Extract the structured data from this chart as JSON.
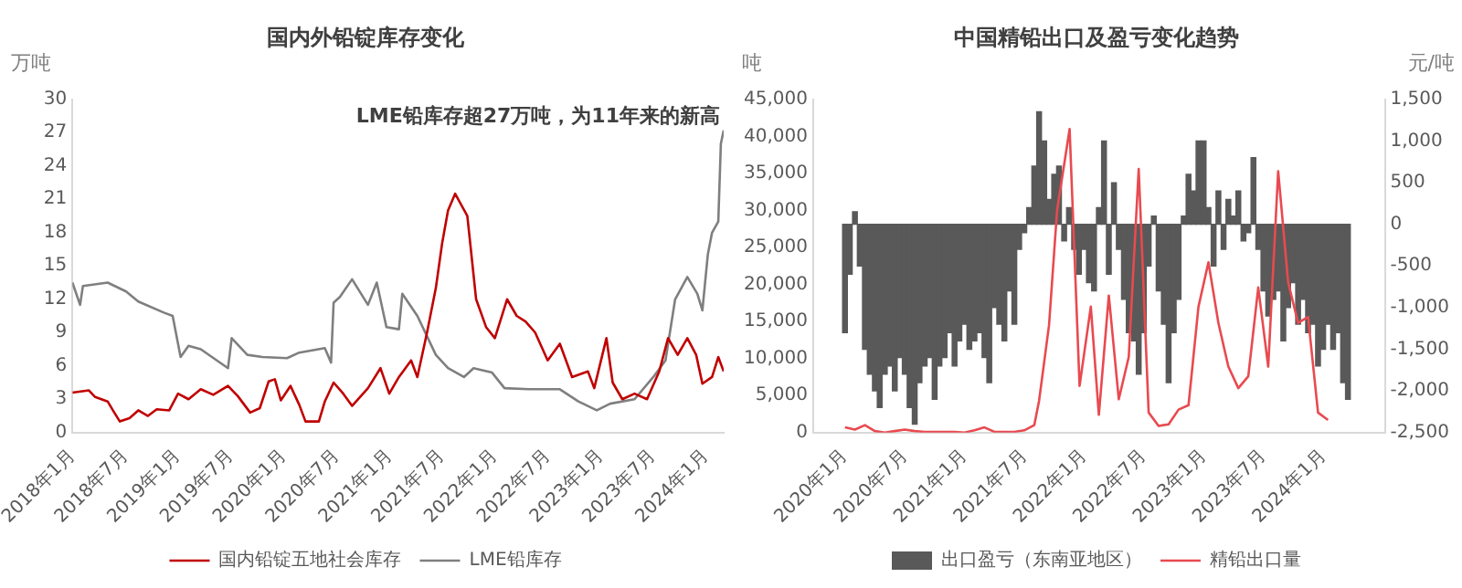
{
  "chart_data": [
    {
      "type": "line",
      "title": "国内外铅锭库存变化",
      "ylabel": "万吨",
      "annotations": [
        "LME铅库存超27万吨，为11年来的新高"
      ],
      "xlim": [
        "2018-01",
        "2024-03"
      ],
      "xticks": [
        {
          "value": "2018-01",
          "label": "2018年1月"
        },
        {
          "value": "2018-07",
          "label": "2018年7月"
        },
        {
          "value": "2019-01",
          "label": "2019年1月"
        },
        {
          "value": "2019-07",
          "label": "2019年7月"
        },
        {
          "value": "2020-01",
          "label": "2020年1月"
        },
        {
          "value": "2020-07",
          "label": "2020年7月"
        },
        {
          "value": "2021-01",
          "label": "2021年1月"
        },
        {
          "value": "2021-07",
          "label": "2021年7月"
        },
        {
          "value": "2022-01",
          "label": "2022年1月"
        },
        {
          "value": "2022-07",
          "label": "2022年7月"
        },
        {
          "value": "2023-01",
          "label": "2023年1月"
        },
        {
          "value": "2023-07",
          "label": "2023年7月"
        },
        {
          "value": "2024-01",
          "label": "2024年1月"
        }
      ],
      "ylim": [
        0,
        30
      ],
      "yticks": [
        0,
        3,
        6,
        9,
        12,
        15,
        18,
        21,
        24,
        27,
        30
      ],
      "legend": "bottom",
      "marker": "none",
      "series": [
        {
          "name": "国内铅锭五地社会库存",
          "color": "#c00000",
          "x": [
            "2018-01-01",
            "2018-02-28",
            "2018-03-19",
            "2018-05-01",
            "2018-05-22",
            "2018-06-13",
            "2018-07-16",
            "2018-08-16",
            "2018-09-19",
            "2018-10-19",
            "2018-12-01",
            "2019-01-01",
            "2019-02-07",
            "2019-03-19",
            "2019-05-01",
            "2019-06-22",
            "2019-07-25",
            "2019-09-07",
            "2019-10-10",
            "2019-11-10",
            "2019-12-01",
            "2019-12-22",
            "2020-01-25",
            "2020-02-25",
            "2020-03-16",
            "2020-05-01",
            "2020-05-22",
            "2020-06-22",
            "2020-07-25",
            "2020-08-25",
            "2020-10-19",
            "2020-12-01",
            "2021-01-01",
            "2021-02-04",
            "2021-03-16",
            "2021-04-07",
            "2021-05-10",
            "2021-06-10",
            "2021-07-01",
            "2021-07-22",
            "2021-08-16",
            "2021-09-28",
            "2021-10-28",
            "2021-12-01",
            "2022-01-01",
            "2022-02-13",
            "2022-03-16",
            "2022-04-16",
            "2022-05-19",
            "2022-07-01",
            "2022-08-13",
            "2022-09-25",
            "2022-11-19",
            "2022-12-10",
            "2023-01-22",
            "2023-02-13",
            "2023-03-16",
            "2023-04-28",
            "2023-06-10",
            "2023-07-22",
            "2023-08-22",
            "2023-09-25",
            "2023-10-28",
            "2023-11-28",
            "2023-12-19",
            "2024-01-22",
            "2024-02-13",
            "2024-03-01"
          ],
          "values": [
            3.6,
            3.8,
            3.2,
            2.8,
            1.9,
            1.0,
            1.3,
            2.0,
            1.5,
            2.1,
            2.0,
            3.5,
            3.0,
            3.9,
            3.4,
            4.2,
            3.3,
            1.8,
            2.2,
            4.6,
            4.8,
            2.9,
            4.2,
            2.5,
            1.0,
            1.0,
            2.8,
            4.5,
            3.5,
            2.4,
            4.0,
            5.8,
            3.5,
            5.0,
            6.5,
            5.0,
            9.0,
            13.0,
            17.0,
            20.0,
            21.5,
            19.5,
            12.0,
            9.5,
            8.5,
            12.0,
            10.5,
            10.0,
            9.0,
            6.5,
            8.0,
            5.0,
            5.5,
            4.0,
            8.5,
            4.5,
            3.0,
            3.5,
            3.0,
            5.5,
            8.5,
            7.0,
            8.5,
            7.0,
            4.4,
            5.0,
            6.8,
            5.5
          ]
        },
        {
          "name": "LME铅库存",
          "color": "#7f7f7f",
          "x": [
            "2018-01-01",
            "2018-01-28",
            "2018-02-07",
            "2018-05-01",
            "2018-07-04",
            "2018-08-16",
            "2018-11-13",
            "2018-12-13",
            "2019-01-10",
            "2019-02-07",
            "2019-03-19",
            "2019-06-22",
            "2019-07-04",
            "2019-08-28",
            "2019-10-19",
            "2020-01-13",
            "2020-02-25",
            "2020-05-22",
            "2020-06-13",
            "2020-06-22",
            "2020-07-13",
            "2020-08-25",
            "2020-10-19",
            "2020-11-19",
            "2020-12-22",
            "2021-02-04",
            "2021-02-16",
            "2021-04-07",
            "2021-06-10",
            "2021-07-22",
            "2021-09-16",
            "2021-10-19",
            "2021-12-22",
            "2022-02-04",
            "2022-04-28",
            "2022-08-13",
            "2022-10-16",
            "2022-12-19",
            "2023-02-04",
            "2023-04-28",
            "2023-07-01",
            "2023-08-13",
            "2023-09-16",
            "2023-10-28",
            "2023-12-01",
            "2023-12-19",
            "2024-01-07",
            "2024-01-22",
            "2024-02-13",
            "2024-02-22",
            "2024-03-01"
          ],
          "values": [
            13.5,
            11.5,
            13.2,
            13.5,
            12.7,
            11.8,
            10.8,
            10.5,
            6.8,
            7.8,
            7.5,
            5.8,
            8.5,
            7.0,
            6.8,
            6.7,
            7.2,
            7.6,
            6.3,
            11.7,
            12.2,
            13.8,
            11.5,
            13.5,
            9.5,
            9.3,
            12.5,
            10.5,
            7.0,
            5.8,
            5.0,
            5.8,
            5.4,
            4.0,
            3.9,
            3.9,
            2.8,
            2.0,
            2.6,
            3.0,
            5.0,
            6.5,
            12.0,
            14.0,
            12.5,
            11.0,
            16.0,
            18.0,
            19.0,
            26.0,
            27.2
          ]
        }
      ]
    },
    {
      "type": "bar",
      "title": "中国精铅出口及盈亏变化趋势",
      "ylabel": "吨",
      "y2label": "元/吨",
      "xlim": [
        "2020-01",
        "2024-04"
      ],
      "xticks": [
        {
          "value": "2020-01",
          "label": "2020年1月"
        },
        {
          "value": "2020-07",
          "label": "2020年7月"
        },
        {
          "value": "2021-01",
          "label": "2021年1月"
        },
        {
          "value": "2021-07",
          "label": "2021年7月"
        },
        {
          "value": "2022-01",
          "label": "2022年1月"
        },
        {
          "value": "2022-07",
          "label": "2022年7月"
        },
        {
          "value": "2023-01",
          "label": "2023年1月"
        },
        {
          "value": "2023-07",
          "label": "2023年7月"
        },
        {
          "value": "2024-01",
          "label": "2024年1月"
        }
      ],
      "ylim": [
        0,
        45000
      ],
      "yticks": [
        0,
        {
          "value": 5000,
          "label": "5,000"
        },
        {
          "value": 10000,
          "label": "10,000"
        },
        {
          "value": 15000,
          "label": "15,000"
        },
        {
          "value": 20000,
          "label": "20,000"
        },
        {
          "value": 25000,
          "label": "25,000"
        },
        {
          "value": 30000,
          "label": "30,000"
        },
        {
          "value": 35000,
          "label": "35,000"
        },
        {
          "value": 40000,
          "label": "40,000"
        },
        {
          "value": 45000,
          "label": "45,000"
        }
      ],
      "y2lim": [
        -2500,
        1500
      ],
      "y2ticks": [
        {
          "value": -2500,
          "label": "-2,500"
        },
        {
          "value": -2000,
          "label": "-2,000"
        },
        {
          "value": -1500,
          "label": "-1,500"
        },
        {
          "value": -1000,
          "label": "-1,000"
        },
        -500,
        0,
        500,
        {
          "value": 1000,
          "label": "1,000"
        },
        {
          "value": 1500,
          "label": "1,500"
        }
      ],
      "legend": "bottom",
      "marker": "none",
      "series": [
        {
          "name": "出口盈亏（东南亚地区）",
          "type": "bar",
          "axis": "y2",
          "color": "#595959",
          "x": [
            "2020-01-01",
            "2020-01-16",
            "2020-02-01",
            "2020-02-16",
            "2020-03-01",
            "2020-03-16",
            "2020-04-01",
            "2020-04-16",
            "2020-05-01",
            "2020-05-16",
            "2020-06-01",
            "2020-06-16",
            "2020-07-01",
            "2020-07-16",
            "2020-08-01",
            "2020-08-16",
            "2020-09-01",
            "2020-09-16",
            "2020-10-01",
            "2020-10-16",
            "2020-11-01",
            "2020-11-16",
            "2020-12-01",
            "2020-12-16",
            "2021-01-01",
            "2021-01-16",
            "2021-02-01",
            "2021-02-16",
            "2021-03-01",
            "2021-03-16",
            "2021-04-01",
            "2021-04-16",
            "2021-05-01",
            "2021-05-16",
            "2021-06-01",
            "2021-06-16",
            "2021-07-01",
            "2021-07-16",
            "2021-08-01",
            "2021-08-16",
            "2021-09-01",
            "2021-09-16",
            "2021-10-01",
            "2021-10-16",
            "2021-11-01",
            "2021-11-16",
            "2021-12-01",
            "2021-12-16",
            "2022-01-01",
            "2022-01-16",
            "2022-02-01",
            "2022-02-16",
            "2022-03-01",
            "2022-03-16",
            "2022-04-01",
            "2022-04-16",
            "2022-05-01",
            "2022-05-16",
            "2022-06-01",
            "2022-06-16",
            "2022-07-01",
            "2022-07-16",
            "2022-08-01",
            "2022-08-16",
            "2022-09-01",
            "2022-09-16",
            "2022-10-01",
            "2022-10-16",
            "2022-11-01",
            "2022-11-16",
            "2022-12-01",
            "2022-12-16",
            "2023-01-01",
            "2023-01-16",
            "2023-02-01",
            "2023-02-16",
            "2023-03-01",
            "2023-03-16",
            "2023-04-01",
            "2023-04-16",
            "2023-05-01",
            "2023-05-16",
            "2023-06-01",
            "2023-06-16",
            "2023-07-01",
            "2023-07-16",
            "2023-08-01",
            "2023-08-16",
            "2023-09-01",
            "2023-09-16",
            "2023-10-01",
            "2023-10-16",
            "2023-11-01",
            "2023-11-16",
            "2023-12-01",
            "2023-12-16",
            "2024-01-01",
            "2024-01-16",
            "2024-02-01",
            "2024-02-16",
            "2024-03-01",
            "2024-03-16"
          ],
          "values": [
            -1300,
            -600,
            150,
            -500,
            -1500,
            -1800,
            -2000,
            -2200,
            -1800,
            -1700,
            -2000,
            -1600,
            -1800,
            -2200,
            -2400,
            -1900,
            -1700,
            -1600,
            -2100,
            -1700,
            -1600,
            -1300,
            -1700,
            -1400,
            -1200,
            -1500,
            -1400,
            -1300,
            -1600,
            -1900,
            -1000,
            -1200,
            -1400,
            -800,
            -1200,
            -300,
            -100,
            200,
            700,
            1350,
            1000,
            300,
            600,
            700,
            -200,
            200,
            -300,
            -600,
            -300,
            -700,
            -800,
            200,
            1000,
            -600,
            500,
            -300,
            -900,
            -1300,
            -1400,
            -1800,
            -1300,
            -500,
            100,
            -800,
            -1200,
            -1900,
            -1300,
            -900,
            100,
            600,
            400,
            1000,
            1000,
            200,
            -500,
            400,
            -300,
            300,
            100,
            400,
            -200,
            -100,
            800,
            -300,
            -800,
            -1100,
            -900,
            -800,
            -1400,
            -1000,
            -700,
            -1200,
            -900,
            -1300,
            -1200,
            -1700,
            -1500,
            -1200,
            -1500,
            -1300,
            -1900,
            -2100
          ]
        },
        {
          "name": "精铅出口量",
          "type": "line",
          "color": "#e84a50",
          "x": [
            "2020-01-01",
            "2020-02-01",
            "2020-03-01",
            "2020-04-01",
            "2020-05-01",
            "2020-06-01",
            "2020-07-01",
            "2020-08-01",
            "2020-09-01",
            "2020-10-01",
            "2020-11-01",
            "2020-12-01",
            "2021-01-01",
            "2021-02-01",
            "2021-03-01",
            "2021-04-01",
            "2021-05-01",
            "2021-06-01",
            "2021-07-01",
            "2021-08-01",
            "2021-08-16",
            "2021-09-16",
            "2021-10-10",
            "2021-11-18",
            "2021-12-18",
            "2022-01-22",
            "2022-02-16",
            "2022-03-16",
            "2022-04-16",
            "2022-05-16",
            "2022-06-16",
            "2022-07-16",
            "2022-08-16",
            "2022-09-16",
            "2022-10-16",
            "2022-11-16",
            "2022-12-16",
            "2023-01-16",
            "2023-02-16",
            "2023-03-16",
            "2023-04-16",
            "2023-05-16",
            "2023-06-16",
            "2023-07-16",
            "2023-08-16",
            "2023-09-16",
            "2023-10-16",
            "2023-11-16",
            "2023-12-16",
            "2024-01-16"
          ],
          "values": [
            700,
            400,
            1000,
            200,
            0,
            200,
            400,
            200,
            100,
            100,
            100,
            100,
            0,
            300,
            700,
            100,
            100,
            100,
            300,
            1000,
            4300,
            14500,
            30000,
            41000,
            6300,
            17000,
            2400,
            18500,
            4500,
            10200,
            35600,
            2700,
            900,
            1100,
            3100,
            3700,
            17000,
            23000,
            14800,
            8900,
            6000,
            7600,
            19600,
            8900,
            35300,
            20300,
            14800,
            15600,
            2700,
            1700
          ]
        }
      ]
    }
  ]
}
